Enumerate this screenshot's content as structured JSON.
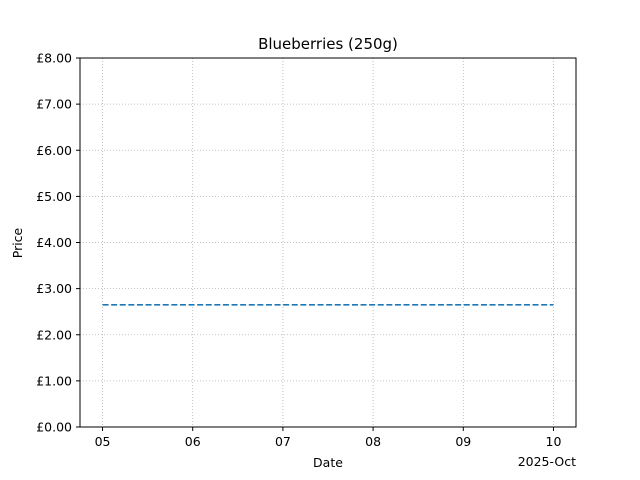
{
  "chart_data": {
    "type": "line",
    "title": "Blueberries (250g)",
    "xlabel": "Date",
    "ylabel": "Price",
    "x_offset_label": "2025-Oct",
    "x_tick_labels": [
      "05",
      "06",
      "07",
      "08",
      "09",
      "10"
    ],
    "y_tick_labels": [
      "£0.00",
      "£1.00",
      "£2.00",
      "£3.00",
      "£4.00",
      "£5.00",
      "£6.00",
      "£7.00",
      "£8.00"
    ],
    "ylim": [
      0,
      8
    ],
    "xlim": [
      "2025-10-04",
      "2025-10-10"
    ],
    "grid": true,
    "series": [
      {
        "x": [
          "2025-10-05",
          "2025-10-10"
        ],
        "values": [
          2.65,
          2.65
        ],
        "line_style": "dashed",
        "color": "#1f77b4"
      }
    ]
  }
}
